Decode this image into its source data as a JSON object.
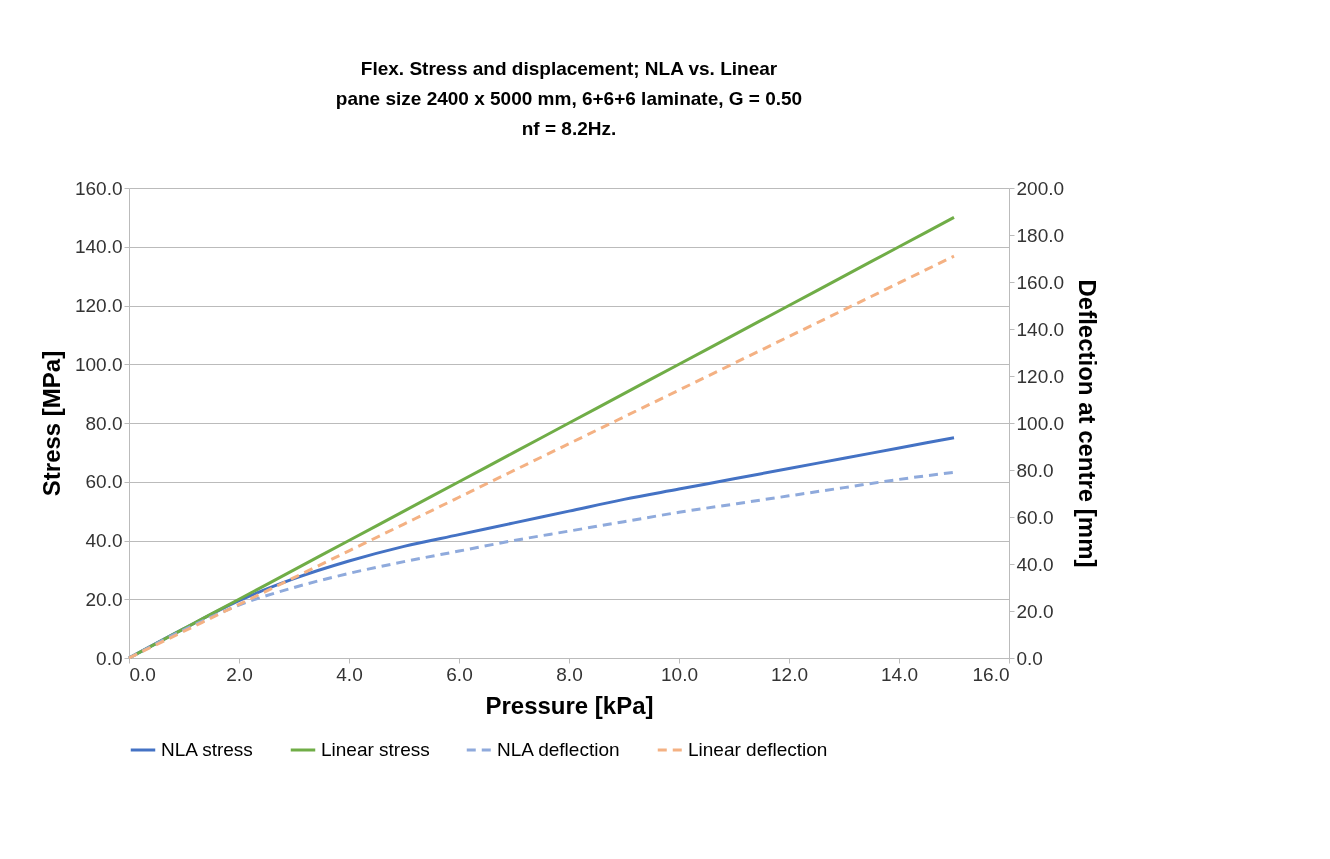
{
  "chart_data": {
    "type": "line",
    "title": "Flex. Stress and displacement; NLA vs. Linear\npane  size 2400 x 5000 mm, 6+6+6 laminate, G = 0.50\nnf = 8.2Hz.",
    "xlabel": "Pressure [kPa]",
    "ylabel": "Stress [MPa]",
    "y2label": "Deflection at centre [mm]",
    "x": [
      0,
      1,
      2,
      3,
      4,
      5,
      6,
      7,
      8,
      9,
      10,
      11,
      12,
      13,
      14,
      15
    ],
    "series": [
      {
        "name": "NLA stress",
        "color": "#4472c4",
        "values": [
          0,
          10,
          19.5,
          27,
          33,
          38,
          42,
          46,
          50,
          54,
          57.5,
          61,
          64.5,
          68,
          71.5,
          75
        ]
      },
      {
        "name": "Linear stress",
        "color": "#70ad47",
        "values": [
          0,
          10,
          20,
          30,
          40,
          50,
          60,
          70,
          80,
          90,
          100,
          110,
          120,
          130,
          140,
          150
        ]
      },
      {
        "name": "NLA deflection",
        "color": "#8faadc",
        "axis": "y2",
        "line_style": "dashed",
        "values": [
          0,
          12,
          22.5,
          30,
          36,
          41,
          45.5,
          50,
          54,
          58,
          62,
          65.5,
          69,
          72.5,
          76,
          79
        ]
      },
      {
        "name": "Linear deflection",
        "color": "#f4b183",
        "axis": "y2",
        "line_style": "dashed",
        "values": [
          0,
          11.4,
          22.8,
          34.2,
          45.6,
          57,
          68.4,
          79.8,
          91.2,
          102.6,
          114,
          125.4,
          136.8,
          148.2,
          159.6,
          171
        ]
      }
    ],
    "xlim": [
      0,
      16
    ],
    "xticks": [
      {
        "value": 0,
        "label": "0.0"
      },
      {
        "value": 2,
        "label": "2.0"
      },
      {
        "value": 4,
        "label": "4.0"
      },
      {
        "value": 6,
        "label": "6.0"
      },
      {
        "value": 8,
        "label": "8.0"
      },
      {
        "value": 10,
        "label": "10.0"
      },
      {
        "value": 12,
        "label": "12.0"
      },
      {
        "value": 14,
        "label": "14.0"
      },
      {
        "value": 16,
        "label": "16.0"
      }
    ],
    "ylim": [
      0,
      160
    ],
    "yticks": [
      {
        "value": 0,
        "label": "0.0"
      },
      {
        "value": 20,
        "label": "20.0"
      },
      {
        "value": 40,
        "label": "40.0"
      },
      {
        "value": 60,
        "label": "60.0"
      },
      {
        "value": 80,
        "label": "80.0"
      },
      {
        "value": 100,
        "label": "100.0"
      },
      {
        "value": 120,
        "label": "120.0"
      },
      {
        "value": 140,
        "label": "140.0"
      },
      {
        "value": 160,
        "label": "160.0"
      }
    ],
    "y2lim": [
      0,
      200
    ],
    "y2ticks": [
      {
        "value": 0,
        "label": "0.0"
      },
      {
        "value": 20,
        "label": "20.0"
      },
      {
        "value": 40,
        "label": "40.0"
      },
      {
        "value": 60,
        "label": "60.0"
      },
      {
        "value": 80,
        "label": "80.0"
      },
      {
        "value": 100,
        "label": "100.0"
      },
      {
        "value": 120,
        "label": "120.0"
      },
      {
        "value": 140,
        "label": "140.0"
      },
      {
        "value": 160,
        "label": "160.0"
      },
      {
        "value": 180,
        "label": "180.0"
      },
      {
        "value": 200,
        "label": "200.0"
      }
    ],
    "grid": "y",
    "legend": "bottom",
    "marker": "none",
    "line_style": "solid"
  }
}
